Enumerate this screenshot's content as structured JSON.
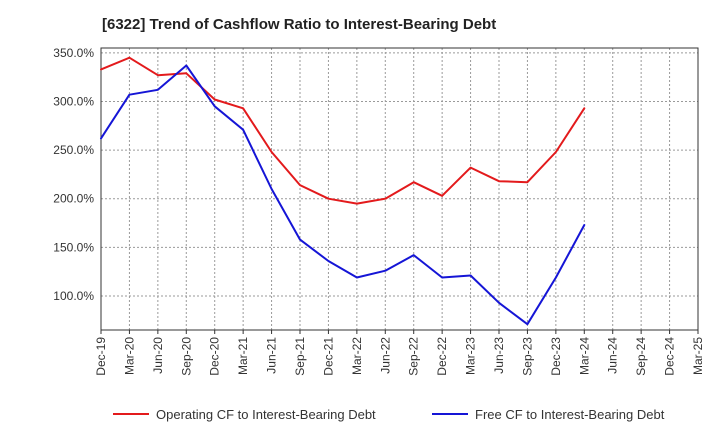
{
  "chart_data": {
    "type": "line",
    "title": "[6322]  Trend of Cashflow Ratio to Interest-Bearing Debt",
    "xlabel": "",
    "ylabel": "",
    "x": [
      "Dec-19",
      "Mar-20",
      "Jun-20",
      "Sep-20",
      "Dec-20",
      "Mar-21",
      "Jun-21",
      "Sep-21",
      "Dec-21",
      "Mar-22",
      "Jun-22",
      "Sep-22",
      "Dec-22",
      "Mar-23",
      "Jun-23",
      "Sep-23",
      "Dec-23",
      "Mar-24",
      "Jun-24",
      "Sep-24",
      "Dec-24",
      "Mar-25"
    ],
    "ylim": [
      65,
      355
    ],
    "yticks": [
      100,
      150,
      200,
      250,
      300,
      350
    ],
    "ytick_labels": [
      "100.0%",
      "150.0%",
      "200.0%",
      "250.0%",
      "300.0%",
      "350.0%"
    ],
    "grid": true,
    "legend_position": "bottom",
    "series": [
      {
        "name": "Operating CF to Interest-Bearing Debt",
        "color": "#e31a1c",
        "values": [
          333,
          345,
          327,
          329,
          302,
          293,
          248,
          214,
          200,
          195,
          200,
          217,
          203,
          232,
          218,
          217,
          248,
          293,
          null,
          null,
          null,
          null
        ]
      },
      {
        "name": "Free CF to Interest-Bearing Debt",
        "color": "#1515d6",
        "values": [
          262,
          307,
          312,
          337,
          295,
          271,
          210,
          158,
          136,
          119,
          126,
          142,
          119,
          121,
          93,
          71,
          119,
          173,
          null,
          null,
          null,
          null
        ]
      }
    ]
  }
}
